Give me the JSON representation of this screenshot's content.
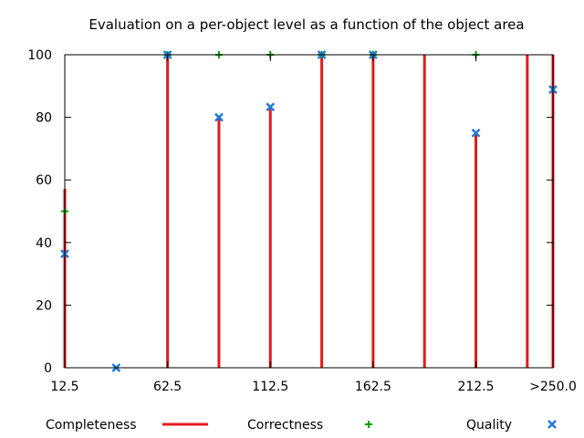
{
  "chart_data": {
    "type": "impulse-scatter",
    "title": "Evaluation on a per-object level as a function of the object area",
    "xlabel": "",
    "ylabel": "",
    "x": [
      12.5,
      37.5,
      62.5,
      87.5,
      112.5,
      137.5,
      162.5,
      187.5,
      212.5,
      237.5,
      250.0
    ],
    "xlim": [
      12.5,
      250.0
    ],
    "ylim": [
      0,
      100
    ],
    "x_ticks": [
      {
        "value": 12.5,
        "label": "12.5"
      },
      {
        "value": 62.5,
        "label": "62.5"
      },
      {
        "value": 112.5,
        "label": "112.5"
      },
      {
        "value": 162.5,
        "label": "162.5"
      },
      {
        "value": 212.5,
        "label": "212.5"
      },
      {
        "value": 250.0,
        "label": ">250.0"
      }
    ],
    "y_ticks": [
      0,
      20,
      40,
      60,
      80,
      100
    ],
    "grid": false,
    "legend_position": "bottom",
    "series": [
      {
        "name": "Completeness",
        "style": "impulse",
        "color": "#e41a1c",
        "values": [
          57.1,
          0,
          100,
          80,
          83.3,
          100,
          100,
          100,
          75,
          100,
          100
        ]
      },
      {
        "name": "Correctness",
        "style": "plus",
        "color": "#00a000",
        "values": [
          50,
          null,
          100,
          100,
          100,
          100,
          100,
          null,
          100,
          null,
          null
        ]
      },
      {
        "name": "Quality",
        "style": "cross",
        "color": "#1f78d8",
        "values": [
          36.4,
          0,
          100,
          80,
          83.3,
          100,
          100,
          null,
          75,
          null,
          88.9
        ]
      }
    ]
  }
}
